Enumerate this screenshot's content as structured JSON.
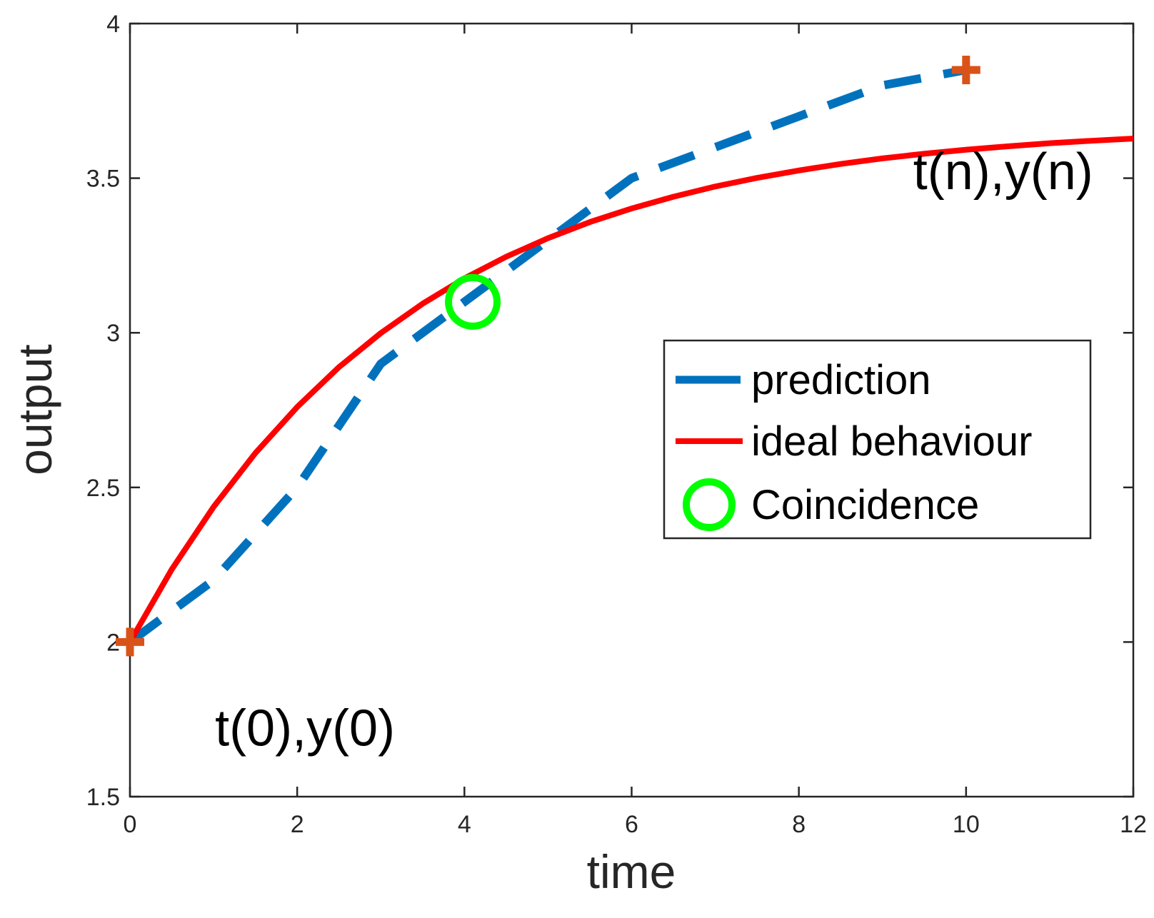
{
  "chart_data": {
    "type": "line",
    "title": "",
    "xlabel": "time",
    "ylabel": "output",
    "xlim": [
      0,
      12
    ],
    "ylim": [
      1.5,
      4
    ],
    "xticks": [
      0,
      2,
      4,
      6,
      8,
      10,
      12
    ],
    "xtick_labels": [
      "0",
      "2",
      "4",
      "6",
      "8",
      "10",
      "12"
    ],
    "yticks": [
      1.5,
      2,
      2.5,
      3,
      3.5,
      4
    ],
    "ytick_labels": [
      "1.5",
      "2",
      "2.5",
      "3",
      "3.5",
      "4"
    ],
    "grid": false,
    "legend_position": "center-right",
    "series": [
      {
        "name": "prediction",
        "style": "dashed",
        "color": "#0072BD",
        "x": [
          0,
          1,
          2,
          3,
          4,
          5,
          6,
          7,
          8,
          9,
          10
        ],
        "y": [
          2.0,
          2.2,
          2.5,
          2.9,
          3.1,
          3.3,
          3.5,
          3.6,
          3.7,
          3.8,
          3.85
        ]
      },
      {
        "name": "ideal behaviour",
        "style": "solid",
        "color": "#FF0000",
        "x": [
          0,
          0.5,
          1,
          1.5,
          2,
          2.5,
          3,
          3.5,
          4,
          4.5,
          5,
          5.5,
          6,
          6.5,
          7,
          7.5,
          8,
          8.5,
          9,
          9.5,
          10,
          10.5,
          11,
          11.5,
          12
        ],
        "y": [
          2.0,
          2.235,
          2.437,
          2.611,
          2.76,
          2.889,
          2.999,
          3.094,
          3.176,
          3.246,
          3.306,
          3.358,
          3.402,
          3.44,
          3.473,
          3.501,
          3.525,
          3.546,
          3.564,
          3.579,
          3.592,
          3.603,
          3.613,
          3.621,
          3.628
        ]
      },
      {
        "name": "Coincidence",
        "style": "marker-circle",
        "color": "#00FF00",
        "x": [
          4.1
        ],
        "y": [
          3.1
        ]
      }
    ],
    "endpoint_markers": {
      "color": "#D95319",
      "x": [
        0,
        10
      ],
      "y": [
        2.0,
        3.85
      ]
    },
    "annotations": [
      {
        "text": "t(0),y(0)",
        "x": 1.0,
        "y": 1.72
      },
      {
        "text": "t(n),y(n)",
        "x": 9.35,
        "y": 3.52
      }
    ]
  }
}
